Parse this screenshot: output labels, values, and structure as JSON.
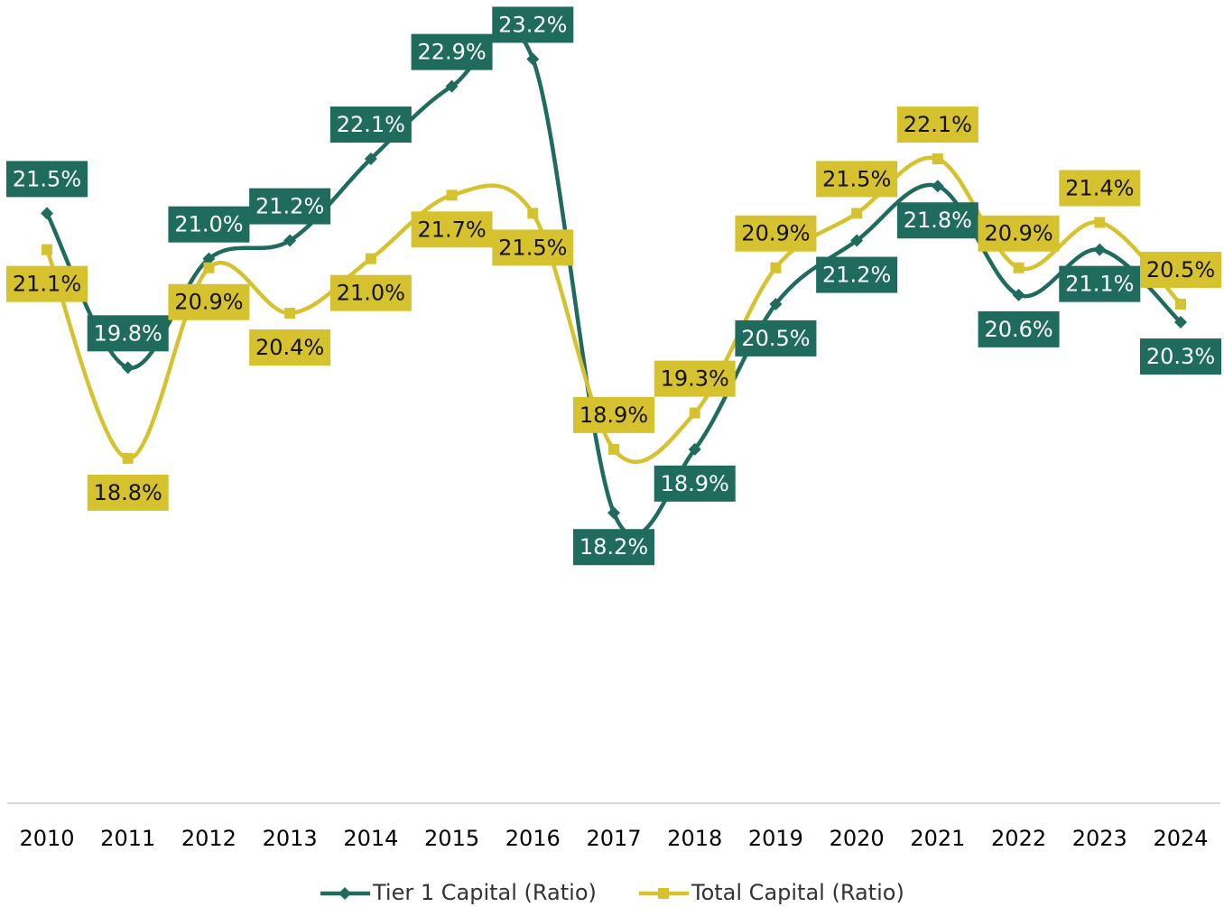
{
  "chart_data": {
    "type": "line",
    "categories": [
      "2010",
      "2011",
      "2012",
      "2013",
      "2014",
      "2015",
      "2016",
      "2017",
      "2018",
      "2019",
      "2020",
      "2021",
      "2022",
      "2023",
      "2024"
    ],
    "series": [
      {
        "name": "Tier 1 Capital (Ratio)",
        "color": "#1f6b5d",
        "marker": "diamond",
        "values": [
          21.5,
          19.8,
          21.0,
          21.2,
          22.1,
          22.9,
          23.2,
          18.2,
          18.9,
          20.5,
          21.2,
          21.8,
          20.6,
          21.1,
          20.3
        ],
        "value_labels": [
          "21.5%",
          "19.8%",
          "21.0%",
          "21.2%",
          "22.1%",
          "22.9%",
          "23.2%",
          "18.2%",
          "18.9%",
          "20.5%",
          "21.2%",
          "21.8%",
          "20.6%",
          "21.1%",
          "20.3%"
        ]
      },
      {
        "name": "Total Capital (Ratio)",
        "color": "#d6c22e",
        "marker": "square",
        "values": [
          21.1,
          18.8,
          20.9,
          20.4,
          21.0,
          21.7,
          21.5,
          18.9,
          19.3,
          20.9,
          21.5,
          22.1,
          20.9,
          21.4,
          20.5
        ],
        "value_labels": [
          "21.1%",
          "18.8%",
          "20.9%",
          "20.4%",
          "21.0%",
          "21.7%",
          "21.5%",
          "18.9%",
          "19.3%",
          "20.9%",
          "21.5%",
          "22.1%",
          "20.9%",
          "21.4%",
          "20.5%"
        ]
      }
    ],
    "ylim": [
      15,
      24
    ],
    "grid": false,
    "legend": "bottom"
  }
}
